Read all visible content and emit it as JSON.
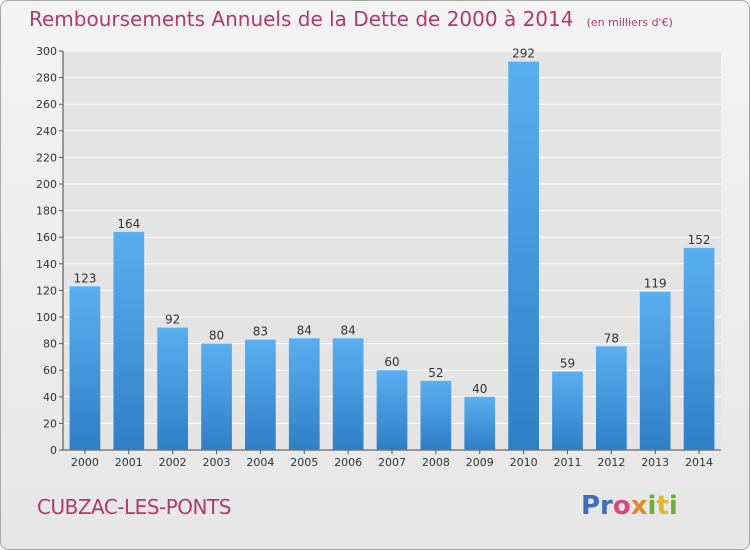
{
  "header": {
    "title": "Remboursements Annuels de la Dette de 2000 à 2014",
    "subtitle": "(en milliers d'€)"
  },
  "footer": {
    "town": "CUBZAC-LES-PONTS",
    "logo_text": "Proxiti"
  },
  "colors": {
    "bar_top": "#5aaff0",
    "bar_bottom": "#2f7fc6",
    "title": "#b03a6a",
    "grid": "#ffffff"
  },
  "chart_data": {
    "type": "bar",
    "categories": [
      "2000",
      "2001",
      "2002",
      "2003",
      "2004",
      "2005",
      "2006",
      "2007",
      "2008",
      "2009",
      "2010",
      "2011",
      "2012",
      "2013",
      "2014"
    ],
    "values": [
      123,
      164,
      92,
      80,
      83,
      84,
      84,
      60,
      52,
      40,
      292,
      59,
      78,
      119,
      152
    ],
    "ylim": [
      0,
      300
    ],
    "yticks": [
      0,
      20,
      40,
      60,
      80,
      100,
      120,
      140,
      160,
      180,
      200,
      220,
      240,
      260,
      280,
      300
    ],
    "grid": true,
    "data_labels": true
  }
}
